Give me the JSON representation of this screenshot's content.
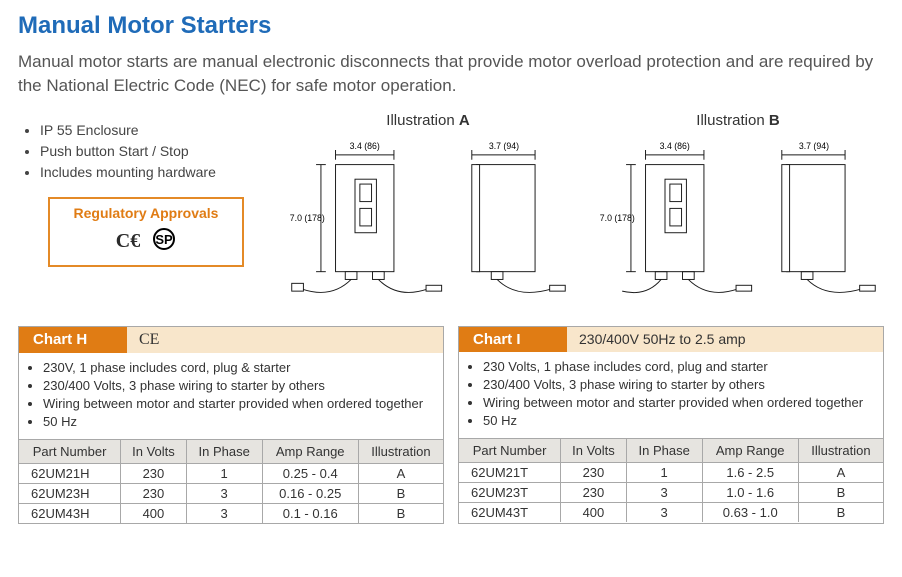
{
  "title": "Manual Motor Starters",
  "intro": "Manual motor starts are manual electronic disconnects that provide motor overload protection and are required by the National Electric Code (NEC) for safe motor operation.",
  "features": [
    "IP 55 Enclosure",
    "Push button Start / Stop",
    "Includes mounting hardware"
  ],
  "regulatory": {
    "title": "Regulatory Approvals",
    "marks": [
      "CE",
      "SP"
    ]
  },
  "illustrations": {
    "a": {
      "label_prefix": "Illustration ",
      "label_letter": "A",
      "width": "3.4 (86)",
      "depth": "3.7 (94)",
      "height": "7.0 (178)"
    },
    "b": {
      "label_prefix": "Illustration ",
      "label_letter": "B",
      "width": "3.4 (86)",
      "depth": "3.7 (94)",
      "height": "7.0 (178)"
    }
  },
  "chartH": {
    "tab": "Chart H",
    "sub": "CE",
    "notes": [
      "230V, 1 phase includes cord, plug & starter",
      "230/400 Volts, 3 phase wiring to starter by others",
      "Wiring between motor and starter provided when ordered together",
      "50 Hz"
    ],
    "columns": [
      "Part Number",
      "In Volts",
      "In Phase",
      "Amp Range",
      "Illustration"
    ],
    "rows": [
      [
        "62UM21H",
        "230",
        "1",
        "0.25 - 0.4",
        "A"
      ],
      [
        "62UM23H",
        "230",
        "3",
        "0.16 - 0.25",
        "B"
      ],
      [
        "62UM43H",
        "400",
        "3",
        "0.1 - 0.16",
        "B"
      ]
    ]
  },
  "chartI": {
    "tab": "Chart I",
    "sub": "230/400V 50Hz to 2.5 amp",
    "notes": [
      "230 Volts, 1 phase includes cord, plug and starter",
      "230/400 Volts, 3 phase wiring to starter by others",
      "Wiring between motor and starter provided when ordered together",
      "50 Hz"
    ],
    "columns": [
      "Part Number",
      "In Volts",
      "In Phase",
      "Amp Range",
      "Illustration"
    ],
    "rows": [
      [
        "62UM21T",
        "230",
        "1",
        "1.6 - 2.5",
        "A"
      ],
      [
        "62UM23T",
        "230",
        "3",
        "1.0 - 1.6",
        "B"
      ],
      [
        "62UM43T",
        "400",
        "3",
        "0.63 - 1.0",
        "B"
      ]
    ]
  },
  "colors": {
    "title": "#1f6bb8",
    "accent": "#e07c14",
    "accent_light": "#f8e6cb",
    "border": "#a8a8a8",
    "th_bg": "#e6e4e0",
    "text": "#333333"
  }
}
